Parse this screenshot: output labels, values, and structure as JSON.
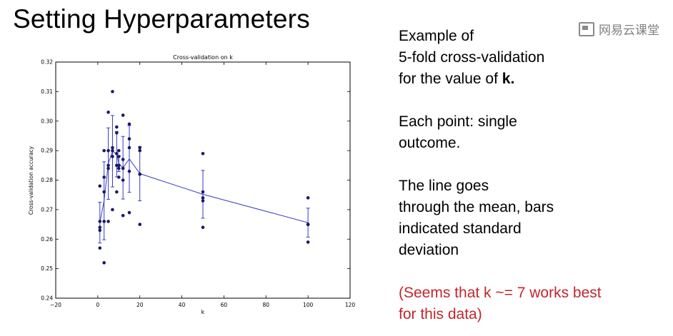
{
  "slide": {
    "title": "Setting Hyperparameters"
  },
  "right_text": {
    "para1": "Example of\n5-fold cross-validation\nfor the value of ",
    "para1_bold": "k.",
    "para2": "Each point: single\noutcome.",
    "para3": "The line goes\nthrough the mean, bars\nindicated standard\ndeviation",
    "note": "(Seems that k ~= 7 works best\nfor this data)"
  },
  "watermark": {
    "text": "网易云课堂",
    "icon": "screen-icon"
  },
  "colors": {
    "point": "#1a1a66",
    "line": "#3a3ac8",
    "note": "#c0272d"
  },
  "chart_data": {
    "type": "scatter",
    "title": "Cross-validation on k",
    "xlabel": "k",
    "ylabel": "Cross-validation accuracy",
    "xlim": [
      -20,
      120
    ],
    "ylim": [
      0.24,
      0.32
    ],
    "xticks": [
      -20,
      0,
      20,
      40,
      60,
      80,
      100,
      120
    ],
    "yticks": [
      0.24,
      0.25,
      0.26,
      0.27,
      0.28,
      0.29,
      0.3,
      0.31,
      0.32
    ],
    "grid": false,
    "points": {
      "k": [
        1,
        1,
        1,
        1,
        1,
        3,
        3,
        3,
        3,
        3,
        5,
        5,
        5,
        5,
        5,
        7,
        7,
        7,
        7,
        7,
        9,
        9,
        9,
        9,
        9,
        10,
        10,
        10,
        10,
        10,
        12,
        12,
        12,
        12,
        12,
        15,
        15,
        15,
        15,
        15,
        20,
        20,
        20,
        20,
        20,
        50,
        50,
        50,
        50,
        50,
        100,
        100,
        100,
        100,
        100
      ],
      "accuracy": [
        0.263,
        0.264,
        0.266,
        0.257,
        0.278,
        0.29,
        0.281,
        0.266,
        0.252,
        0.276,
        0.303,
        0.285,
        0.284,
        0.29,
        0.266,
        0.31,
        0.291,
        0.29,
        0.27,
        0.288,
        0.298,
        0.296,
        0.289,
        0.276,
        0.285,
        0.29,
        0.288,
        0.281,
        0.284,
        0.285,
        0.302,
        0.287,
        0.28,
        0.268,
        0.284,
        0.299,
        0.294,
        0.291,
        0.283,
        0.269,
        0.291,
        0.29,
        0.282,
        0.265,
        0.282,
        0.289,
        0.276,
        0.274,
        0.273,
        0.264,
        0.274,
        0.265,
        0.265,
        0.259,
        0.265
      ]
    },
    "mean_line": {
      "k": [
        1,
        3,
        5,
        7,
        9,
        10,
        12,
        15,
        20,
        50,
        100
      ],
      "mean": [
        0.2656,
        0.273,
        0.2856,
        0.2898,
        0.2888,
        0.2856,
        0.2842,
        0.2872,
        0.2822,
        0.2752,
        0.2656
      ],
      "std": [
        0.0069,
        0.0132,
        0.0121,
        0.0121,
        0.0077,
        0.0027,
        0.0106,
        0.0113,
        0.0092,
        0.0081,
        0.0049
      ]
    }
  }
}
